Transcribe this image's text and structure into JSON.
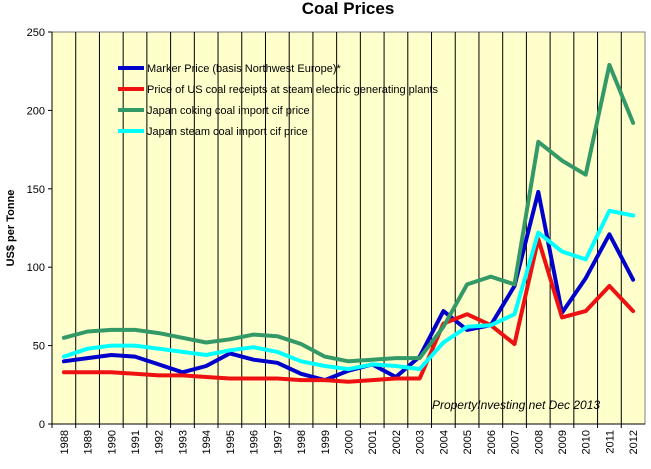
{
  "chart_data": {
    "type": "line",
    "title": "Coal Prices",
    "xlabel": "",
    "ylabel": "US$ per Tonne",
    "ylim": [
      0,
      250
    ],
    "yticks": [
      0,
      50,
      100,
      150,
      200,
      250
    ],
    "grid": "vertical",
    "legend_position": "top-left",
    "annotation": "PropertyInvesting.net  Dec 2013",
    "background_color": "#FFFFCC",
    "categories": [
      "1988",
      "1989",
      "1990",
      "1991",
      "1992",
      "1993",
      "1994",
      "1995",
      "1996",
      "1997",
      "1998",
      "1999",
      "2000",
      "2001",
      "2002",
      "2003",
      "2004",
      "2005",
      "2006",
      "2007",
      "2008",
      "2009",
      "2010",
      "2011",
      "2012"
    ],
    "series": [
      {
        "name": "Marker Price (basis Northwest Europe)*",
        "color": "#0000CC",
        "values": [
          40,
          42,
          44,
          43,
          38,
          33,
          37,
          45,
          41,
          39,
          32,
          28,
          34,
          38,
          30,
          43,
          72,
          60,
          63,
          88,
          148,
          71,
          93,
          121,
          92
        ]
      },
      {
        "name": "Price of US coal receipts at steam electric generating plants",
        "color": "#EE1111",
        "values": [
          33,
          33,
          33,
          32,
          31,
          31,
          30,
          29,
          29,
          29,
          28,
          28,
          27,
          28,
          29,
          29,
          64,
          70,
          63,
          51,
          118,
          68,
          72,
          88,
          72
        ]
      },
      {
        "name": "Japan coking coal import cif price",
        "color": "#339966",
        "values": [
          55,
          59,
          60,
          60,
          58,
          55,
          52,
          54,
          57,
          56,
          51,
          43,
          40,
          41,
          42,
          42,
          62,
          89,
          94,
          89,
          180,
          168,
          159,
          229,
          192
        ]
      },
      {
        "name": "Japan steam coal import cif price",
        "color": "#00FFFF",
        "values": [
          43,
          48,
          50,
          50,
          48,
          46,
          44,
          47,
          49,
          46,
          40,
          37,
          35,
          38,
          37,
          35,
          52,
          62,
          63,
          70,
          122,
          110,
          105,
          136,
          133
        ]
      }
    ]
  }
}
